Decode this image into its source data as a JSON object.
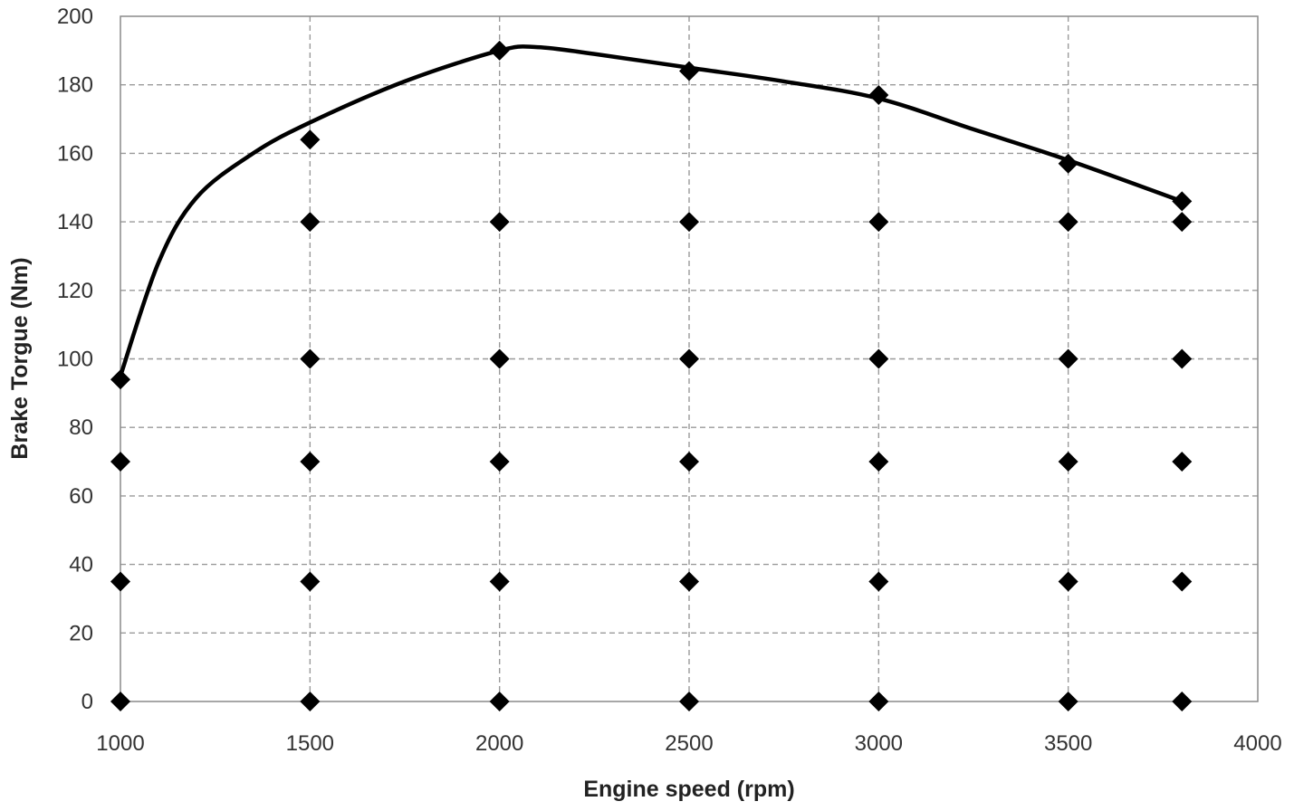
{
  "chart_data": {
    "type": "scatter",
    "xlabel": "Engine speed (rpm)",
    "ylabel": "Brake Torgue (Nm)",
    "xlim": [
      1000,
      4000
    ],
    "ylim": [
      0,
      200
    ],
    "xticks": [
      1000,
      1500,
      2000,
      2500,
      3000,
      3500,
      4000
    ],
    "yticks": [
      0,
      20,
      40,
      60,
      80,
      100,
      120,
      140,
      160,
      180,
      200
    ],
    "grid": true,
    "legend": "none",
    "series": [
      {
        "type": "scatter",
        "marker": "diamond",
        "color": "#000000",
        "points": [
          [
            1000,
            0
          ],
          [
            1000,
            35
          ],
          [
            1000,
            70
          ],
          [
            1000,
            94
          ],
          [
            1500,
            0
          ],
          [
            1500,
            35
          ],
          [
            1500,
            70
          ],
          [
            1500,
            100
          ],
          [
            1500,
            140
          ],
          [
            1500,
            164
          ],
          [
            2000,
            0
          ],
          [
            2000,
            35
          ],
          [
            2000,
            70
          ],
          [
            2000,
            100
          ],
          [
            2000,
            140
          ],
          [
            2000,
            190
          ],
          [
            2500,
            0
          ],
          [
            2500,
            35
          ],
          [
            2500,
            70
          ],
          [
            2500,
            100
          ],
          [
            2500,
            140
          ],
          [
            2500,
            184
          ],
          [
            3000,
            0
          ],
          [
            3000,
            35
          ],
          [
            3000,
            70
          ],
          [
            3000,
            100
          ],
          [
            3000,
            140
          ],
          [
            3000,
            177
          ],
          [
            3500,
            0
          ],
          [
            3500,
            35
          ],
          [
            3500,
            70
          ],
          [
            3500,
            100
          ],
          [
            3500,
            140
          ],
          [
            3500,
            157
          ],
          [
            3800,
            0
          ],
          [
            3800,
            35
          ],
          [
            3800,
            70
          ],
          [
            3800,
            100
          ],
          [
            3800,
            140
          ],
          [
            3800,
            146
          ]
        ]
      },
      {
        "type": "line",
        "smooth": true,
        "color": "#000000",
        "points": [
          [
            1000,
            95
          ],
          [
            1100,
            128
          ],
          [
            1200,
            147
          ],
          [
            1350,
            160
          ],
          [
            1500,
            169
          ],
          [
            1750,
            181
          ],
          [
            2000,
            190
          ],
          [
            2100,
            191
          ],
          [
            2250,
            189
          ],
          [
            2500,
            185
          ],
          [
            2750,
            181
          ],
          [
            3000,
            176
          ],
          [
            3250,
            167
          ],
          [
            3500,
            158
          ],
          [
            3800,
            146
          ]
        ]
      }
    ]
  }
}
